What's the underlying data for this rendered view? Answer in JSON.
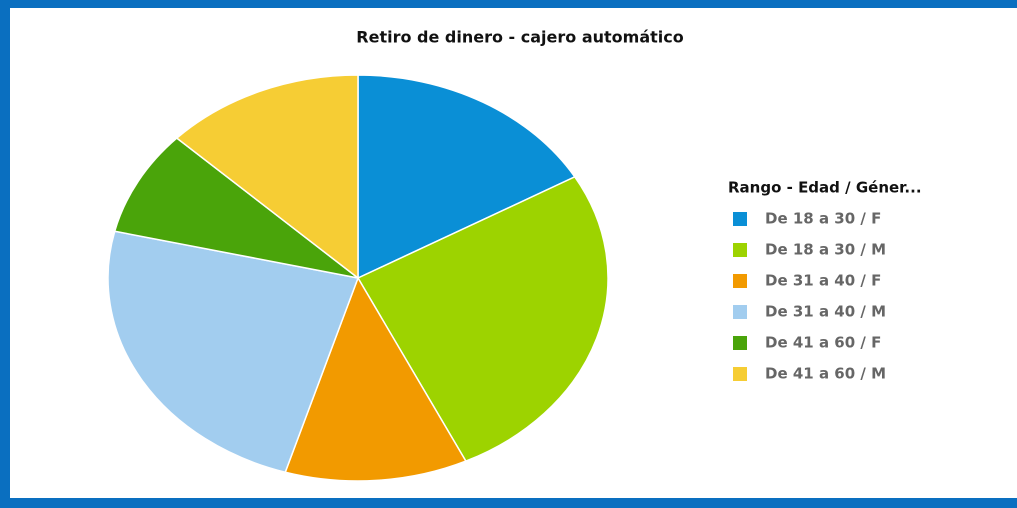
{
  "chart_data": {
    "type": "pie",
    "title": "Retiro de dinero - cajero automático",
    "legend_title": "Rango - Edad / Géner...",
    "categories": [
      "De 18 a 30 / F",
      "De 18 a 30 / M",
      "De 31 a 40 / F",
      "De 31 a 40 / M",
      "De 41 a 60 / F",
      "De 41 a 60 / M"
    ],
    "values": [
      16.7,
      26.2,
      11.8,
      24,
      8.4,
      12.9
    ],
    "colors": [
      "#0a8fd6",
      "#9dd300",
      "#f29a00",
      "#a2cdef",
      "#4aa40a",
      "#f6cd34"
    ],
    "legend_position": "right"
  }
}
